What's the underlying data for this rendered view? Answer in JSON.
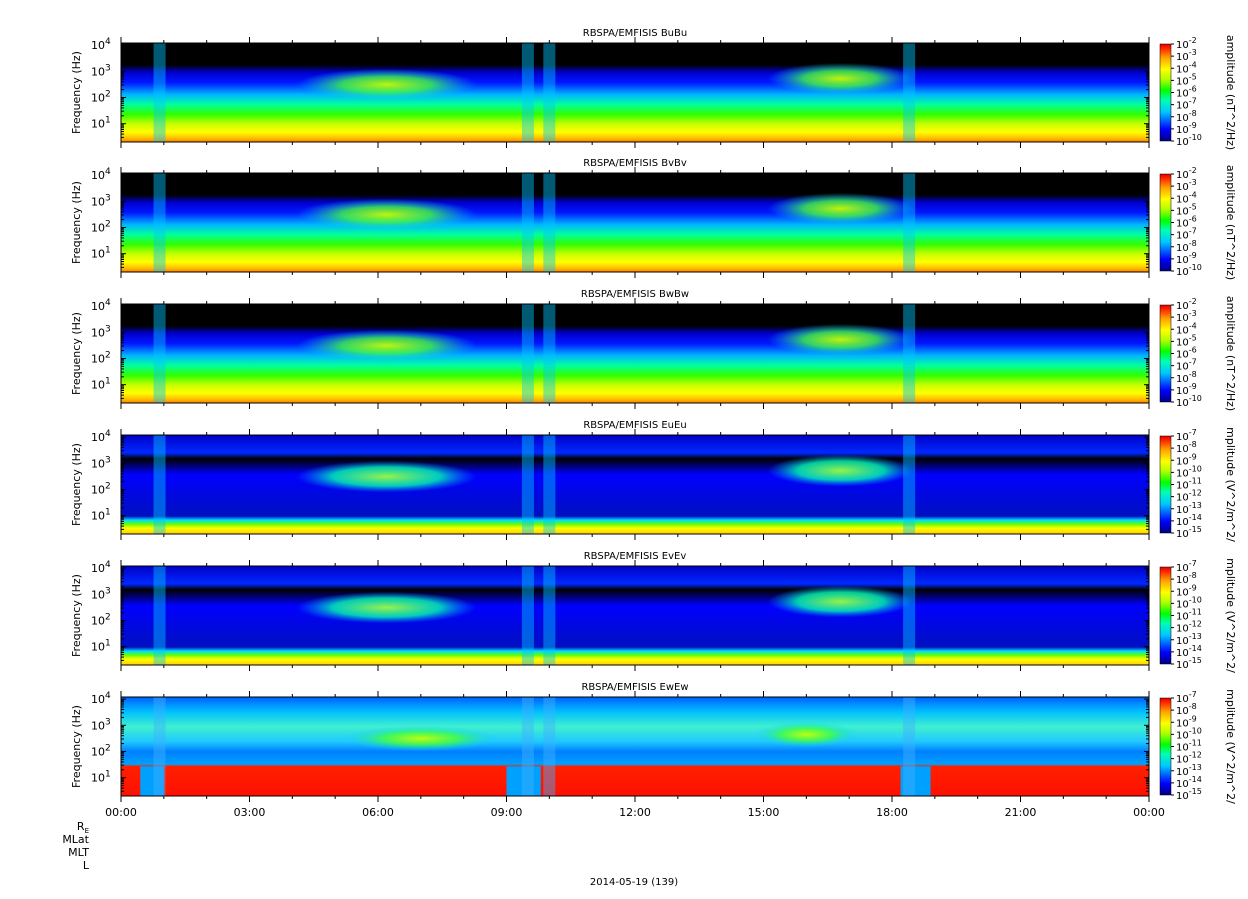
{
  "figure": {
    "date_label": "2014-05-19 (139)",
    "ephemeris_labels": [
      "R",
      "MLat",
      "MLT",
      "L"
    ],
    "ephemeris_subscript": "E"
  },
  "colors": {
    "colormap": [
      "#000080",
      "#0000ff",
      "#00c8ff",
      "#00ffb4",
      "#00ff00",
      "#b4ff00",
      "#ffff00",
      "#ffa000",
      "#ff2000",
      "#e00000"
    ],
    "background_black": "#000000"
  },
  "chart_data": [
    {
      "type": "heatmap",
      "title": "RBSPA/EMFISIS  BuBu",
      "ylabel": "Frequency (Hz)",
      "y_scale": "log",
      "ylim": [
        2,
        12000
      ],
      "y_ticks": [
        "10",
        "10",
        "10",
        "10"
      ],
      "y_tick_exponents": [
        "1",
        "2",
        "3",
        "4"
      ],
      "xlim_hours": [
        0,
        24
      ],
      "colorbar": {
        "label": "amplitude (nT^2/Hz)",
        "scale": "log",
        "range": [
          -10,
          -2
        ],
        "ticks": [
          "10",
          "10",
          "10",
          "10",
          "10",
          "10",
          "10",
          "10",
          "10"
        ],
        "tick_exponents": [
          "-2",
          "-3",
          "-4",
          "-5",
          "-6",
          "-7",
          "-8",
          "-9",
          "-10"
        ]
      }
    },
    {
      "type": "heatmap",
      "title": "RBSPA/EMFISIS  BvBv",
      "ylabel": "Frequency (Hz)",
      "y_scale": "log",
      "ylim": [
        2,
        12000
      ],
      "y_ticks": [
        "10",
        "10",
        "10",
        "10"
      ],
      "y_tick_exponents": [
        "1",
        "2",
        "3",
        "4"
      ],
      "xlim_hours": [
        0,
        24
      ],
      "colorbar": {
        "label": "amplitude (nT^2/Hz)",
        "scale": "log",
        "range": [
          -10,
          -2
        ],
        "ticks": [
          "10",
          "10",
          "10",
          "10",
          "10",
          "10",
          "10",
          "10",
          "10"
        ],
        "tick_exponents": [
          "-2",
          "-3",
          "-4",
          "-5",
          "-6",
          "-7",
          "-8",
          "-9",
          "-10"
        ]
      }
    },
    {
      "type": "heatmap",
      "title": "RBSPA/EMFISIS  BwBw",
      "ylabel": "Frequency (Hz)",
      "y_scale": "log",
      "ylim": [
        2,
        12000
      ],
      "y_ticks": [
        "10",
        "10",
        "10",
        "10"
      ],
      "y_tick_exponents": [
        "1",
        "2",
        "3",
        "4"
      ],
      "xlim_hours": [
        0,
        24
      ],
      "colorbar": {
        "label": "amplitude (nT^2/Hz)",
        "scale": "log",
        "range": [
          -10,
          -2
        ],
        "ticks": [
          "10",
          "10",
          "10",
          "10",
          "10",
          "10",
          "10",
          "10",
          "10"
        ],
        "tick_exponents": [
          "-2",
          "-3",
          "-4",
          "-5",
          "-6",
          "-7",
          "-8",
          "-9",
          "-10"
        ]
      }
    },
    {
      "type": "heatmap",
      "title": "RBSPA/EMFISIS  EuEu",
      "ylabel": "Frequency (Hz)",
      "y_scale": "log",
      "ylim": [
        2,
        12000
      ],
      "y_ticks": [
        "10",
        "10",
        "10",
        "10"
      ],
      "y_tick_exponents": [
        "1",
        "2",
        "3",
        "4"
      ],
      "xlim_hours": [
        0,
        24
      ],
      "colorbar": {
        "label": "mplitude (V^2/m^2/",
        "scale": "log",
        "range": [
          -15,
          -7
        ],
        "ticks": [
          "10",
          "10",
          "10",
          "10",
          "10",
          "10",
          "10",
          "10",
          "10"
        ],
        "tick_exponents": [
          "-7",
          "-8",
          "-9",
          "-10",
          "-11",
          "-12",
          "-13",
          "-14",
          "-15"
        ]
      }
    },
    {
      "type": "heatmap",
      "title": "RBSPA/EMFISIS  EvEv",
      "ylabel": "Frequency (Hz)",
      "y_scale": "log",
      "ylim": [
        2,
        12000
      ],
      "y_ticks": [
        "10",
        "10",
        "10",
        "10"
      ],
      "y_tick_exponents": [
        "1",
        "2",
        "3",
        "4"
      ],
      "xlim_hours": [
        0,
        24
      ],
      "colorbar": {
        "label": "mplitude (V^2/m^2/",
        "scale": "log",
        "range": [
          -15,
          -7
        ],
        "ticks": [
          "10",
          "10",
          "10",
          "10",
          "10",
          "10",
          "10",
          "10",
          "10"
        ],
        "tick_exponents": [
          "-7",
          "-8",
          "-9",
          "-10",
          "-11",
          "-12",
          "-13",
          "-14",
          "-15"
        ]
      }
    },
    {
      "type": "heatmap",
      "title": "RBSPA/EMFISIS  EwEw",
      "ylabel": "Frequency (Hz)",
      "y_scale": "log",
      "ylim": [
        2,
        12000
      ],
      "y_ticks": [
        "10",
        "10",
        "10",
        "10"
      ],
      "y_tick_exponents": [
        "1",
        "2",
        "3",
        "4"
      ],
      "xlim_hours": [
        0,
        24
      ],
      "x_ticks": [
        "00:00",
        "03:00",
        "06:00",
        "09:00",
        "12:00",
        "15:00",
        "18:00",
        "21:00",
        "00:00"
      ],
      "colorbar": {
        "label": "mplitude (V^2/m^2/",
        "scale": "log",
        "range": [
          -15,
          -7
        ],
        "ticks": [
          "10",
          "10",
          "10",
          "10",
          "10",
          "10",
          "10",
          "10",
          "10"
        ],
        "tick_exponents": [
          "-7",
          "-8",
          "-9",
          "-10",
          "-11",
          "-12",
          "-13",
          "-14",
          "-15"
        ]
      }
    }
  ]
}
